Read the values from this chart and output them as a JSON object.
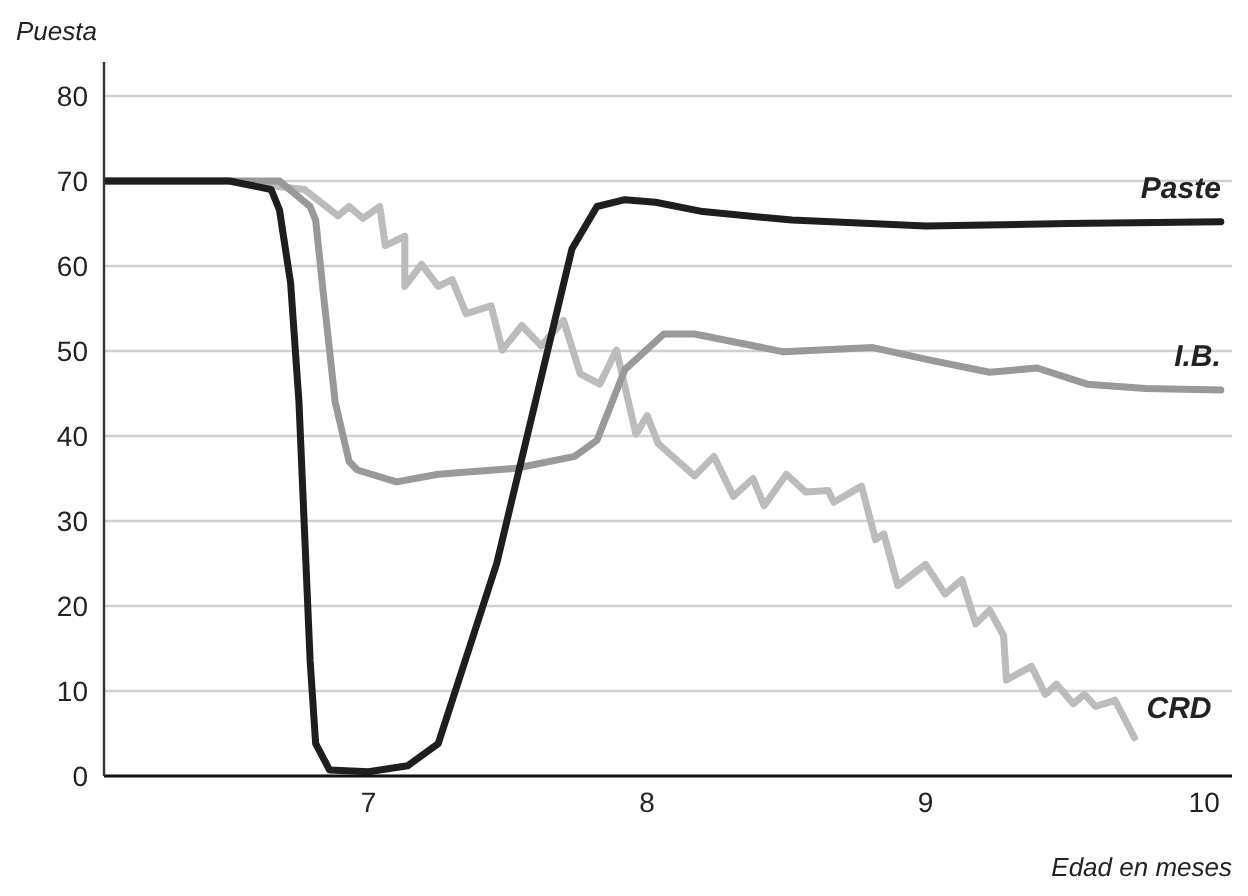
{
  "chart_data": {
    "type": "line",
    "ylabel": "Puesta",
    "xlabel": "Edad en meses",
    "xlim": [
      6.05,
      10.1
    ],
    "xticks": [
      7,
      8,
      9,
      10
    ],
    "ylim": [
      0,
      84
    ],
    "yticks": [
      0,
      10,
      20,
      30,
      40,
      50,
      60,
      70,
      80
    ],
    "grid": "y",
    "marker": "none",
    "line_style": "solid",
    "series": [
      {
        "name": "CRD",
        "color": "#bcbcbc",
        "x": [
          6.05,
          6.5,
          6.77,
          6.89,
          6.93,
          6.98,
          7.04,
          7.06,
          7.13,
          7.13,
          7.19,
          7.25,
          7.3,
          7.35,
          7.44,
          7.48,
          7.55,
          7.62,
          7.7,
          7.76,
          7.83,
          7.89,
          7.96,
          8.0,
          8.04,
          8.17,
          8.24,
          8.31,
          8.38,
          8.42,
          8.5,
          8.57,
          8.65,
          8.67,
          8.77,
          8.82,
          8.85,
          8.9,
          9.0,
          9.07,
          9.13,
          9.18,
          9.23,
          9.28,
          9.29,
          9.38,
          9.43,
          9.47,
          9.53,
          9.57,
          9.61,
          9.68,
          9.75
        ],
        "values": [
          70,
          70,
          69,
          65.9,
          67,
          65.6,
          67,
          62.4,
          63.5,
          57.6,
          60.2,
          57.6,
          58.4,
          54.4,
          55.3,
          50.1,
          53,
          50.6,
          53.6,
          47.3,
          46.1,
          50.1,
          40.2,
          42.4,
          39.1,
          35.3,
          37.6,
          32.9,
          35,
          31.8,
          35.5,
          33.4,
          33.6,
          32.2,
          34.1,
          27.8,
          28.5,
          22.4,
          24.9,
          21.4,
          23.1,
          17.9,
          19.5,
          16.5,
          11.3,
          12.9,
          9.6,
          10.8,
          8.5,
          9.6,
          8.2,
          8.9,
          4.5
        ]
      },
      {
        "name": "I.B.",
        "color": "#999999",
        "x": [
          6.05,
          6.68,
          6.79,
          6.81,
          6.84,
          6.88,
          6.93,
          6.96,
          7.1,
          7.25,
          7.53,
          7.74,
          7.82,
          7.92,
          8.06,
          8.17,
          8.49,
          8.81,
          9.02,
          9.23,
          9.4,
          9.58,
          9.79,
          10.06
        ],
        "values": [
          70,
          70,
          67,
          65.4,
          56,
          44,
          37,
          36,
          34.6,
          35.5,
          36.2,
          37.6,
          39.5,
          47.8,
          52,
          52,
          49.9,
          50.4,
          48.9,
          47.5,
          48,
          46.1,
          45.6,
          45.4
        ]
      },
      {
        "name": "Paste",
        "color": "#1e1e1e",
        "x": [
          6.05,
          6.5,
          6.65,
          6.68,
          6.72,
          6.75,
          6.79,
          6.81,
          6.86,
          7.0,
          7.14,
          7.25,
          7.46,
          7.73,
          7.82,
          7.92,
          8.03,
          8.2,
          8.52,
          9.0,
          9.51,
          10.06
        ],
        "values": [
          70,
          70,
          69,
          66.6,
          58,
          44,
          13.6,
          3.8,
          0.7,
          0.5,
          1.2,
          3.8,
          25,
          62,
          67,
          67.8,
          67.5,
          66.4,
          65.4,
          64.7,
          65,
          65.2
        ]
      }
    ]
  }
}
